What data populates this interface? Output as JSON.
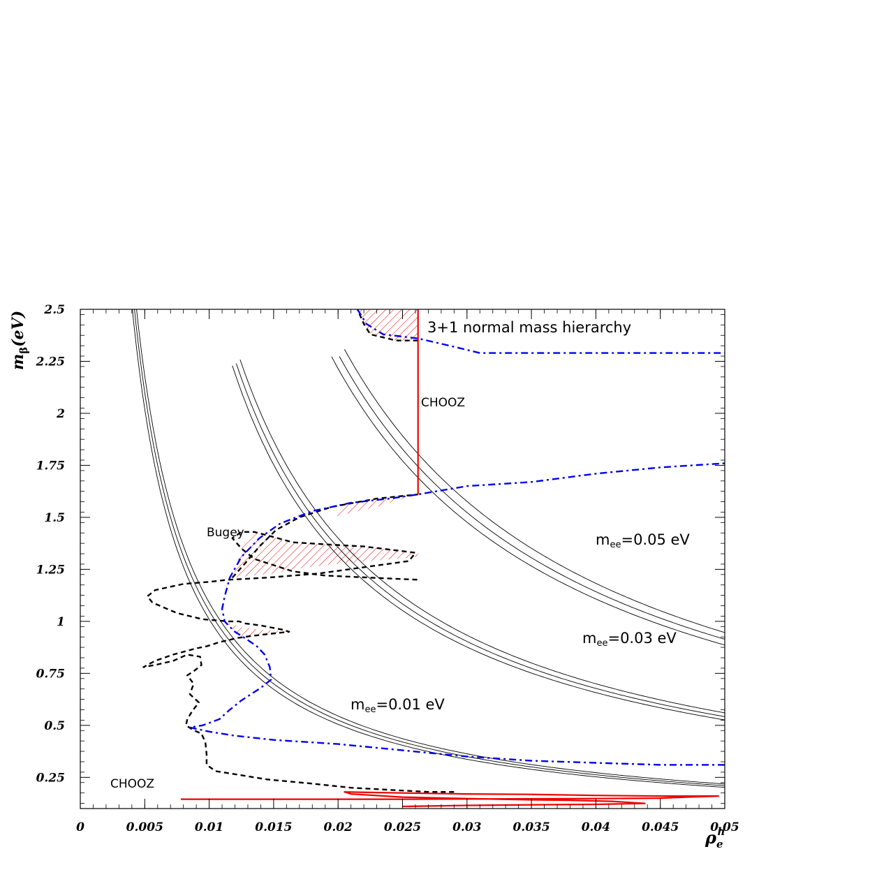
{
  "chart_data": {
    "type": "line",
    "title": "3+1 normal mass hierarchy",
    "xlabel": "ρ",
    "xlabel_sub": "e",
    "xlabel_sup": "h",
    "ylabel_main": "m",
    "ylabel_sub": "β",
    "ylabel_unit": "(eV)",
    "xlim": [
      0,
      0.05
    ],
    "ylim": [
      0.1,
      2.5
    ],
    "xticks": [
      0,
      0.005,
      0.01,
      0.015,
      0.02,
      0.025,
      0.03,
      0.035,
      0.04,
      0.045,
      0.05
    ],
    "xtick_labels": [
      "0",
      "0.005",
      "0.01",
      "0.015",
      "0.02",
      "0.025",
      "0.03",
      "0.035",
      "0.04",
      "0.045",
      "0.05"
    ],
    "yticks": [
      0.25,
      0.5,
      0.75,
      1,
      1.25,
      1.5,
      1.75,
      2,
      2.25,
      2.5
    ],
    "ytick_labels": [
      "0.25",
      "0.5",
      "0.75",
      "1",
      "1.25",
      "1.5",
      "1.75",
      "2",
      "2.25",
      "2.5"
    ],
    "annotations": {
      "mee_001": "m",
      "mee_001_sub": "ee",
      "mee_001_val": "=0.01 eV",
      "mee_003": "m",
      "mee_003_sub": "ee",
      "mee_003_val": "=0.03 eV",
      "mee_005": "m",
      "mee_005_sub": "ee",
      "mee_005_val": "=0.05 eV",
      "bugey": "Bugey",
      "chooz_upper": "CHOOZ",
      "chooz_lower": "CHOOZ"
    },
    "mee_bands": [
      {
        "name": "m_ee=0.01 eV",
        "coeff": [
          0.0101,
          0.0105,
          0.0109
        ],
        "x_start": [
          0.0039,
          0.0041,
          0.0043
        ],
        "y_end": [
          0.2,
          0.23,
          0.26
        ]
      },
      {
        "name": "m_ee=0.03 eV",
        "coeff": [
          0.0263,
          0.0271,
          0.028
        ],
        "x_start": [
          0.0118,
          0.0121,
          0.0124
        ],
        "y_end": [
          0.55,
          0.6,
          0.66
        ]
      },
      {
        "name": "m_ee=0.05 eV",
        "coeff": [
          0.0443,
          0.0457,
          0.0473
        ],
        "x_start": [
          0.0195,
          0.0201,
          0.0205
        ],
        "y_end": [
          0.92,
          0.98,
          1.05
        ]
      }
    ],
    "series": [
      {
        "name": "Bugey dashed",
        "color": "#000000",
        "style": "dashed",
        "x": [
          0.029,
          0.027,
          0.024,
          0.021,
          0.018,
          0.0145,
          0.0125,
          0.0105,
          0.0098,
          0.0098,
          0.0097,
          0.0094,
          0.0087,
          0.0082,
          0.0083,
          0.0087,
          0.0092,
          0.0085,
          0.0088,
          0.0083,
          0.0088,
          0.0094,
          0.0093,
          0.0083,
          0.0072,
          0.0058,
          0.0049,
          0.0058,
          0.0072,
          0.009,
          0.0098,
          0.0108,
          0.0122,
          0.0133,
          0.0147,
          0.0162,
          0.0157,
          0.014,
          0.0128,
          0.0123,
          0.012,
          0.0115,
          0.0095,
          0.0075,
          0.0056,
          0.0052,
          0.0058,
          0.008,
          0.01,
          0.0115,
          0.0145,
          0.0185,
          0.022,
          0.0255,
          0.026,
          0.022,
          0.019,
          0.0165,
          0.0147,
          0.0135,
          0.0125,
          0.0118,
          0.0125,
          0.0135,
          0.015,
          0.0165,
          0.019,
          0.0225,
          0.0262
        ],
        "y": [
          0.18,
          0.18,
          0.19,
          0.2,
          0.22,
          0.24,
          0.26,
          0.28,
          0.31,
          0.36,
          0.42,
          0.46,
          0.48,
          0.5,
          0.53,
          0.57,
          0.61,
          0.65,
          0.7,
          0.74,
          0.76,
          0.79,
          0.83,
          0.84,
          0.81,
          0.79,
          0.78,
          0.81,
          0.84,
          0.87,
          0.88,
          0.9,
          0.92,
          0.93,
          0.94,
          0.95,
          0.96,
          0.98,
          0.99,
          1.0,
          1.0,
          1.0,
          1.01,
          1.04,
          1.09,
          1.12,
          1.15,
          1.18,
          1.19,
          1.2,
          1.21,
          1.23,
          1.26,
          1.29,
          1.33,
          1.36,
          1.37,
          1.38,
          1.41,
          1.43,
          1.43,
          1.4,
          1.35,
          1.3,
          1.27,
          1.24,
          1.22,
          1.21,
          1.2
        ]
      },
      {
        "name": "Bugey dashed upper",
        "color": "#000000",
        "style": "dashed",
        "x": [
          0.0118,
          0.0128,
          0.0139,
          0.0152,
          0.017,
          0.0195,
          0.023,
          0.0262
        ],
        "y": [
          1.21,
          1.28,
          1.36,
          1.44,
          1.5,
          1.55,
          1.59,
          1.61
        ]
      },
      {
        "name": "Bugey dashed top",
        "color": "#000000",
        "style": "dashed",
        "x": [
          0.0262,
          0.0245,
          0.0225,
          0.022,
          0.0215
        ],
        "y": [
          2.35,
          2.35,
          2.38,
          2.43,
          2.5
        ]
      },
      {
        "name": "blue dash-dot lower",
        "color": "#0000ee",
        "style": "dashdot",
        "x": [
          0.05,
          0.045,
          0.04,
          0.035,
          0.03,
          0.025,
          0.02,
          0.015,
          0.012,
          0.01,
          0.0085,
          0.0095,
          0.0108,
          0.0115,
          0.0125,
          0.014,
          0.0148,
          0.0147,
          0.0143,
          0.0137,
          0.013,
          0.0125,
          0.012,
          0.0115,
          0.0112,
          0.011,
          0.0112,
          0.0116,
          0.0125,
          0.0139,
          0.0155,
          0.018,
          0.021,
          0.024,
          0.0262,
          0.03,
          0.035,
          0.04,
          0.045,
          0.05
        ],
        "y": [
          0.31,
          0.31,
          0.32,
          0.33,
          0.35,
          0.38,
          0.41,
          0.43,
          0.45,
          0.47,
          0.49,
          0.5,
          0.53,
          0.57,
          0.62,
          0.68,
          0.72,
          0.78,
          0.84,
          0.88,
          0.91,
          0.93,
          0.95,
          0.98,
          1.0,
          1.06,
          1.12,
          1.21,
          1.31,
          1.4,
          1.47,
          1.53,
          1.57,
          1.59,
          1.61,
          1.65,
          1.67,
          1.71,
          1.74,
          1.76
        ]
      },
      {
        "name": "blue dash-dot upper",
        "color": "#0000ee",
        "style": "dashdot",
        "x": [
          0.0215,
          0.0222,
          0.0235,
          0.0262,
          0.029,
          0.031,
          0.035,
          0.04,
          0.045,
          0.05
        ],
        "y": [
          2.5,
          2.43,
          2.38,
          2.36,
          2.32,
          2.29,
          2.29,
          2.29,
          2.29,
          2.29
        ]
      },
      {
        "name": "CHOOZ vertical",
        "color": "#ee0000",
        "style": "solid",
        "x": [
          0.0262,
          0.0262
        ],
        "y": [
          1.61,
          2.5
        ]
      },
      {
        "name": "CHOOZ bottom",
        "color": "#ee0000",
        "style": "solid",
        "x": [
          0.025,
          0.03,
          0.035,
          0.04,
          0.0438,
          0.0412,
          0.038,
          0.035,
          0.03,
          0.025,
          0.021,
          0.0205,
          0.025,
          0.03,
          0.035,
          0.04,
          0.045,
          0.0495,
          0.047,
          0.045,
          0.04,
          0.035,
          0.03,
          0.025,
          0.02,
          0.015,
          0.01,
          0.0078
        ],
        "y": [
          0.11,
          0.115,
          0.118,
          0.12,
          0.125,
          0.135,
          0.14,
          0.142,
          0.148,
          0.155,
          0.17,
          0.18,
          0.175,
          0.17,
          0.168,
          0.163,
          0.16,
          0.16,
          0.155,
          0.15,
          0.148,
          0.147,
          0.146,
          0.145,
          0.145,
          0.145,
          0.145,
          0.145
        ]
      }
    ],
    "hatched_regions": [
      {
        "name": "region-1.25",
        "x": [
          0.0118,
          0.0135,
          0.015,
          0.0165,
          0.019,
          0.0225,
          0.0262,
          0.0262,
          0.022,
          0.019,
          0.0165,
          0.0147,
          0.0135,
          0.0125,
          0.0118
        ],
        "y": [
          1.21,
          1.22,
          1.23,
          1.25,
          1.27,
          1.29,
          1.31,
          1.33,
          1.36,
          1.37,
          1.38,
          1.41,
          1.43,
          1.35,
          1.21
        ]
      },
      {
        "name": "region-1.55",
        "x": [
          0.0195,
          0.023,
          0.0262,
          0.024,
          0.021,
          0.0195
        ],
        "y": [
          1.5,
          1.55,
          1.61,
          1.59,
          1.57,
          1.5
        ]
      },
      {
        "name": "region-0.95",
        "x": [
          0.0112,
          0.0125,
          0.014,
          0.0162,
          0.014,
          0.0128,
          0.012,
          0.0112
        ],
        "y": [
          1.0,
          0.97,
          0.96,
          0.95,
          0.93,
          0.92,
          0.95,
          1.0
        ]
      },
      {
        "name": "region-top",
        "x": [
          0.0215,
          0.0262,
          0.0262,
          0.0245,
          0.0225,
          0.022,
          0.0215
        ],
        "y": [
          2.5,
          2.5,
          2.35,
          2.35,
          2.38,
          2.43,
          2.5
        ]
      }
    ]
  }
}
